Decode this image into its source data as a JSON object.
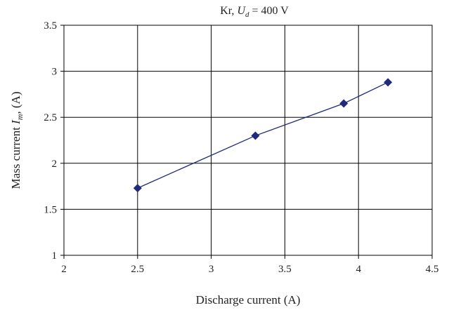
{
  "chart_data": {
    "type": "line",
    "title_prefix": "Kr, ",
    "title_var": "U",
    "title_sub": "d",
    "title_suffix": " = 400 V",
    "xlabel": "Discharge current (A)",
    "ylabel_prefix": "Mass current ",
    "ylabel_var": "I",
    "ylabel_sub": "m",
    "ylabel_suffix": ", (A)",
    "xlim": [
      2,
      4.5
    ],
    "ylim": [
      1,
      3.5
    ],
    "xticks": [
      "2",
      "2.5",
      "3",
      "3.5",
      "4",
      "4.5"
    ],
    "yticks": [
      "1",
      "1.5",
      "2",
      "2.5",
      "3",
      "3.5"
    ],
    "grid": true,
    "series": [
      {
        "x": [
          2.5,
          3.3,
          3.9,
          4.2
        ],
        "y": [
          1.73,
          2.3,
          2.65,
          2.88
        ],
        "color": "#1f2a7a",
        "marker": "diamond"
      }
    ]
  }
}
